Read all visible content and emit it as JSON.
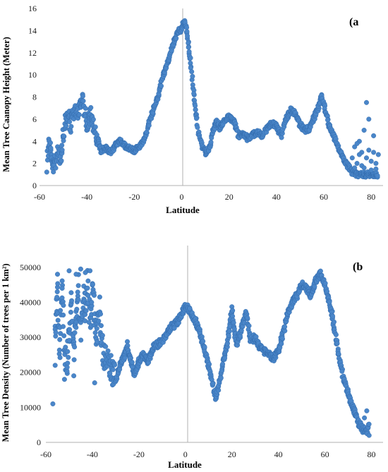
{
  "chart_data": [
    {
      "type": "scatter",
      "panel_label": "(a",
      "xlabel": "Latitude",
      "ylabel": "Mean Tree Caanopy Height (Meter)",
      "xlim": [
        -60,
        85
      ],
      "ylim": [
        0,
        16
      ],
      "xticks": [
        "-60",
        "-40",
        "-20",
        "0",
        "20",
        "40",
        "60",
        "80"
      ],
      "yticks": [
        "0",
        "2",
        "4",
        "6",
        "8",
        "10",
        "12",
        "14",
        "16"
      ],
      "color": "#4a86c9",
      "vertical_line_at_x": 0,
      "series": [
        {
          "profile": [
            [
              -57,
              1.5
            ],
            [
              -56,
              4.2
            ],
            [
              -55,
              2.5
            ],
            [
              -54,
              1.8
            ],
            [
              -53,
              2.4
            ],
            [
              -52,
              3.0
            ],
            [
              -51,
              2.2
            ],
            [
              -50,
              4.5
            ],
            [
              -49,
              5.8
            ],
            [
              -48,
              6.5
            ],
            [
              -47,
              5.5
            ],
            [
              -46,
              6.2
            ],
            [
              -45,
              6.8
            ],
            [
              -44,
              6.5
            ],
            [
              -43,
              7.2
            ],
            [
              -42,
              7.8
            ],
            [
              -41,
              6.8
            ],
            [
              -40,
              5.5
            ],
            [
              -39,
              6.2
            ],
            [
              -38,
              6.5
            ],
            [
              -37,
              5.0
            ],
            [
              -36,
              4.5
            ],
            [
              -35,
              3.8
            ],
            [
              -34,
              3.2
            ],
            [
              -32,
              3.4
            ],
            [
              -30,
              3.0
            ],
            [
              -28,
              3.6
            ],
            [
              -26,
              4.0
            ],
            [
              -24,
              3.6
            ],
            [
              -22,
              3.4
            ],
            [
              -20,
              3.2
            ],
            [
              -18,
              3.5
            ],
            [
              -16,
              4.0
            ],
            [
              -14,
              5.5
            ],
            [
              -12,
              6.8
            ],
            [
              -10,
              8.0
            ],
            [
              -8,
              9.8
            ],
            [
              -6,
              11.0
            ],
            [
              -4,
              12.5
            ],
            [
              -2,
              13.8
            ],
            [
              0,
              14.2
            ],
            [
              1,
              14.8
            ],
            [
              2,
              14.5
            ],
            [
              3,
              12.5
            ],
            [
              4,
              10.5
            ],
            [
              5,
              8.5
            ],
            [
              6,
              6.5
            ],
            [
              7,
              5.0
            ],
            [
              8,
              4.0
            ],
            [
              9,
              3.4
            ],
            [
              10,
              3.0
            ],
            [
              12,
              3.5
            ],
            [
              13,
              4.8
            ],
            [
              14,
              5.5
            ],
            [
              15,
              5.8
            ],
            [
              16,
              5.2
            ],
            [
              18,
              5.8
            ],
            [
              20,
              6.2
            ],
            [
              22,
              5.8
            ],
            [
              24,
              4.5
            ],
            [
              26,
              4.8
            ],
            [
              28,
              4.2
            ],
            [
              30,
              4.6
            ],
            [
              32,
              4.8
            ],
            [
              34,
              4.5
            ],
            [
              36,
              5.2
            ],
            [
              38,
              5.6
            ],
            [
              40,
              5.4
            ],
            [
              42,
              4.5
            ],
            [
              44,
              6.0
            ],
            [
              46,
              6.8
            ],
            [
              48,
              6.5
            ],
            [
              50,
              5.5
            ],
            [
              52,
              5.0
            ],
            [
              54,
              5.2
            ],
            [
              56,
              6.2
            ],
            [
              58,
              7.2
            ],
            [
              59,
              8.0
            ],
            [
              60,
              7.4
            ],
            [
              61,
              6.5
            ],
            [
              62,
              5.5
            ],
            [
              64,
              4.5
            ],
            [
              66,
              3.5
            ],
            [
              68,
              2.5
            ],
            [
              70,
              1.8
            ],
            [
              72,
              1.2
            ],
            [
              74,
              1.0
            ],
            [
              76,
              1.0
            ],
            [
              78,
              1.0
            ],
            [
              80,
              1.0
            ],
            [
              82,
              1.0
            ],
            [
              83,
              1.0
            ]
          ],
          "points": [
            [
              72,
              2.5
            ],
            [
              73,
              3.5
            ],
            [
              74,
              2.0
            ],
            [
              75,
              4.0
            ],
            [
              76,
              3.0
            ],
            [
              76,
              1.8
            ],
            [
              77,
              5.0
            ],
            [
              78,
              7.5
            ],
            [
              78,
              2.5
            ],
            [
              79,
              6.0
            ],
            [
              79,
              3.2
            ],
            [
              80,
              2.2
            ],
            [
              81,
              3.0
            ],
            [
              81,
              4.5
            ],
            [
              82,
              2.0
            ],
            [
              82,
              1.5
            ],
            [
              73,
              1.6
            ],
            [
              75,
              2.8
            ],
            [
              77,
              1.6
            ],
            [
              80,
              1.4
            ],
            [
              83,
              2.8
            ],
            [
              74,
              3.8
            ]
          ]
        }
      ]
    },
    {
      "type": "scatter",
      "panel_label": "(b",
      "xlabel": "Latitude",
      "ylabel": "Mean Tree Density (Number of trees per 1 km²)",
      "xlim": [
        -60,
        85
      ],
      "ylim": [
        0,
        55000
      ],
      "xticks": [
        "-60",
        "-40",
        "-20",
        "0",
        "20",
        "40",
        "60",
        "80"
      ],
      "yticks": [
        "0",
        "10000",
        "20000",
        "30000",
        "40000",
        "50000"
      ],
      "color": "#4a86c9",
      "vertical_line_at_x": 0,
      "series": [
        {
          "profile": [
            [
              -56,
              30000
            ],
            [
              -55,
              42000
            ],
            [
              -54,
              25000
            ],
            [
              -53,
              48000
            ],
            [
              -52,
              28000
            ],
            [
              -51,
              22000
            ],
            [
              -50,
              30000
            ],
            [
              -49,
              40000
            ],
            [
              -48,
              25000
            ],
            [
              -47,
              35000
            ],
            [
              -46,
              45000
            ],
            [
              -45,
              30000
            ],
            [
              -44,
              42000
            ],
            [
              -43,
              38000
            ],
            [
              -42,
              46000
            ],
            [
              -41,
              32000
            ],
            [
              -40,
              44000
            ],
            [
              -39,
              36000
            ],
            [
              -38,
              30000
            ],
            [
              -37,
              38000
            ],
            [
              -36,
              28000
            ],
            [
              -35,
              24000
            ],
            [
              -34,
              26000
            ],
            [
              -33,
              22000
            ],
            [
              -32,
              21000
            ],
            [
              -30,
              18000
            ],
            [
              -28,
              22000
            ],
            [
              -26,
              25000
            ],
            [
              -25,
              28000
            ],
            [
              -24,
              24000
            ],
            [
              -22,
              20000
            ],
            [
              -20,
              23000
            ],
            [
              -18,
              25000
            ],
            [
              -16,
              23000
            ],
            [
              -14,
              27000
            ],
            [
              -12,
              28000
            ],
            [
              -10,
              29000
            ],
            [
              -8,
              31000
            ],
            [
              -6,
              33000
            ],
            [
              -4,
              34000
            ],
            [
              -2,
              36000
            ],
            [
              0,
              39000
            ],
            [
              2,
              37500
            ],
            [
              4,
              35000
            ],
            [
              6,
              32000
            ],
            [
              8,
              27000
            ],
            [
              10,
              22000
            ],
            [
              12,
              16000
            ],
            [
              13,
              13000
            ],
            [
              14,
              15000
            ],
            [
              16,
              22000
            ],
            [
              18,
              28000
            ],
            [
              19,
              33000
            ],
            [
              20,
              38000
            ],
            [
              21,
              32000
            ],
            [
              22,
              28000
            ],
            [
              24,
              32000
            ],
            [
              26,
              37000
            ],
            [
              27,
              34000
            ],
            [
              28,
              29000
            ],
            [
              30,
              30000
            ],
            [
              32,
              27000
            ],
            [
              34,
              26000
            ],
            [
              36,
              25000
            ],
            [
              38,
              24000
            ],
            [
              40,
              26000
            ],
            [
              42,
              31000
            ],
            [
              44,
              37000
            ],
            [
              46,
              40000
            ],
            [
              48,
              42000
            ],
            [
              50,
              45000
            ],
            [
              52,
              44000
            ],
            [
              54,
              42000
            ],
            [
              56,
              46000
            ],
            [
              58,
              48000
            ],
            [
              60,
              45000
            ],
            [
              62,
              40000
            ],
            [
              64,
              33000
            ],
            [
              66,
              25000
            ],
            [
              68,
              18000
            ],
            [
              70,
              14000
            ],
            [
              72,
              10000
            ],
            [
              74,
              6000
            ],
            [
              76,
              4000
            ],
            [
              78,
              3000
            ],
            [
              79,
              5000
            ]
          ],
          "points": [
            [
              -57,
              11000
            ],
            [
              -56,
              22000
            ],
            [
              -55,
              48000
            ],
            [
              -53,
              44000
            ],
            [
              -50,
              49000
            ],
            [
              -47,
              48000
            ],
            [
              -45,
              49500
            ],
            [
              -43,
              48500
            ],
            [
              -41,
              49000
            ],
            [
              -52,
              18000
            ],
            [
              -48,
              19000
            ],
            [
              -39,
              17000
            ],
            [
              78,
              9000
            ],
            [
              77,
              7000
            ],
            [
              79,
              2000
            ]
          ]
        }
      ]
    }
  ]
}
